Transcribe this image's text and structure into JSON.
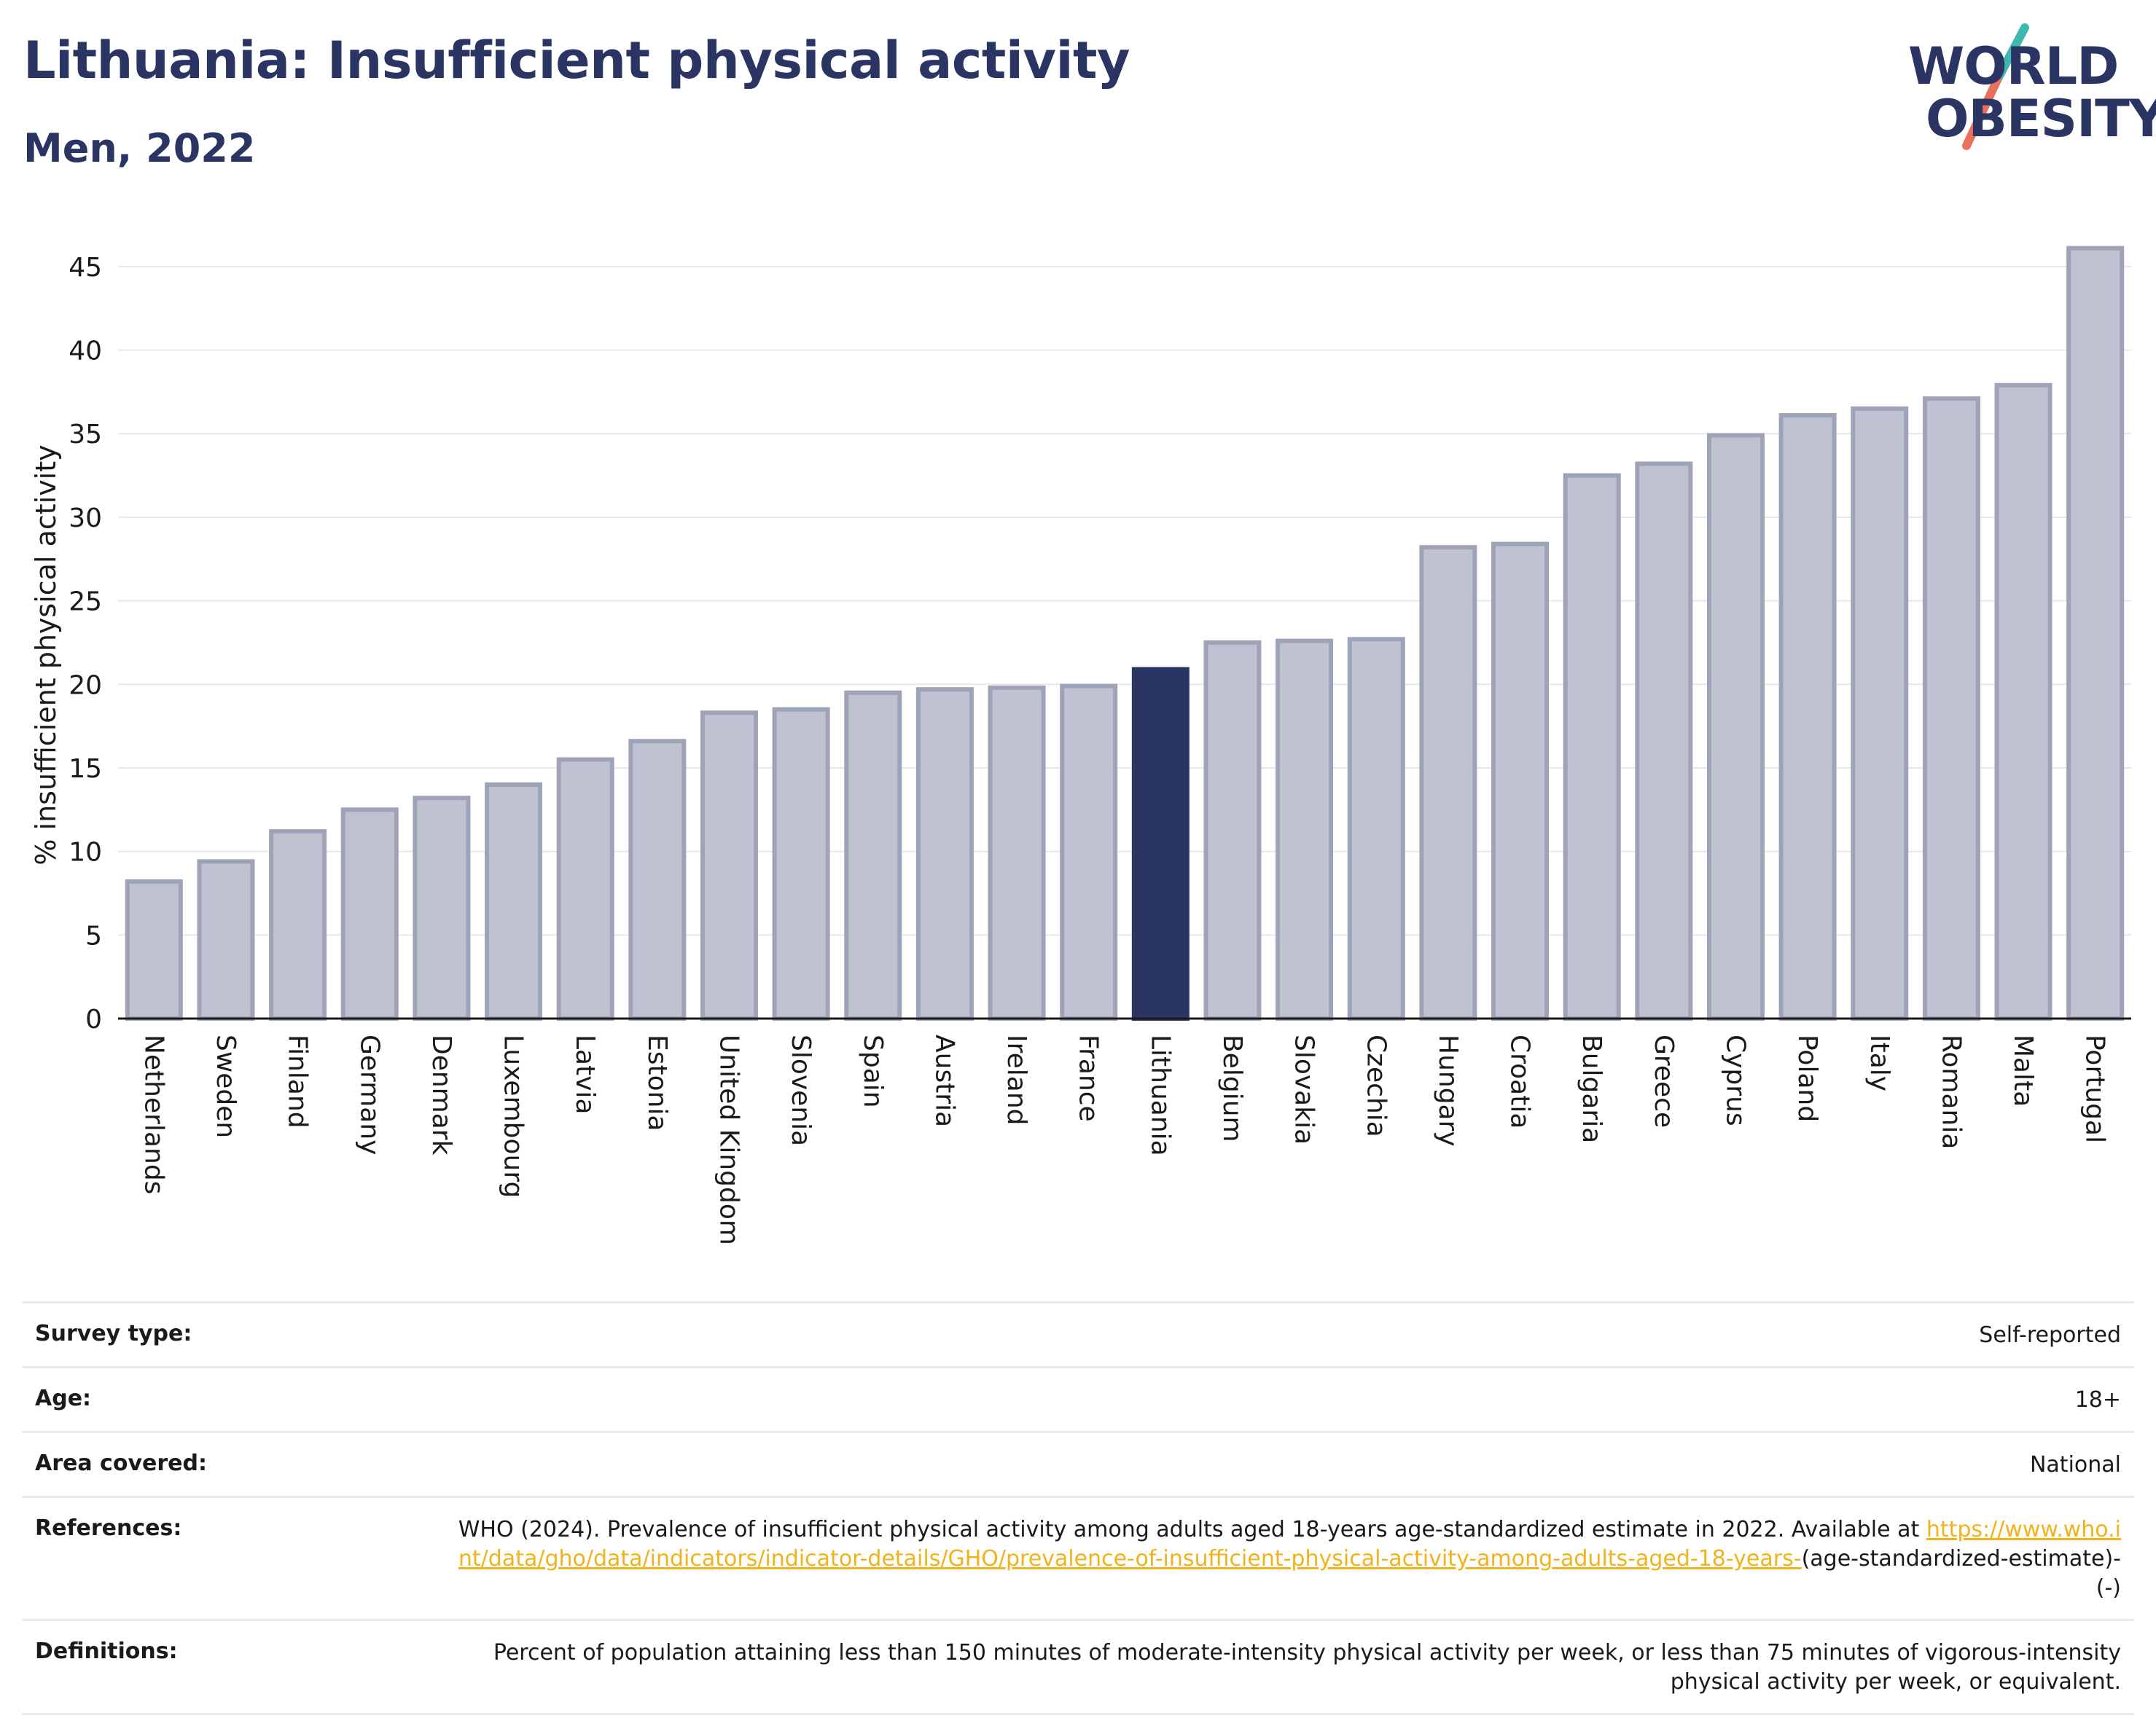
{
  "header": {
    "title": "Lithuania: Insufficient physical activity",
    "subtitle": "Men, 2022"
  },
  "logo": {
    "line1": "WORLD",
    "line2": "OBESITY",
    "accent_teal": "#3fb8b0",
    "accent_coral": "#e8705c"
  },
  "colors": {
    "bar_fill": "#bfc2d0",
    "bar_stroke": "#9ea3b8",
    "highlight_fill": "#2a3563",
    "axis_text": "#1a1a1a",
    "grid": "#e6e8ee",
    "title": "#2a3563"
  },
  "chart_data": {
    "type": "bar",
    "title": "Lithuania: Insufficient physical activity",
    "subtitle": "Men, 2022",
    "xlabel": "",
    "ylabel": "% insufficient physical activity",
    "ylim": [
      0,
      47
    ],
    "yticks": [
      0,
      5,
      10,
      15,
      20,
      25,
      30,
      35,
      40,
      45
    ],
    "grid": true,
    "highlight": "Lithuania",
    "categories": [
      "Netherlands",
      "Sweden",
      "Finland",
      "Germany",
      "Denmark",
      "Luxembourg",
      "Latvia",
      "Estonia",
      "United Kingdom",
      "Slovenia",
      "Spain",
      "Austria",
      "Ireland",
      "France",
      "Lithuania",
      "Belgium",
      "Slovakia",
      "Czechia",
      "Hungary",
      "Croatia",
      "Bulgaria",
      "Greece",
      "Cyprus",
      "Poland",
      "Italy",
      "Romania",
      "Malta",
      "Portugal"
    ],
    "values": [
      8.2,
      9.4,
      11.2,
      12.5,
      13.2,
      14.0,
      15.5,
      16.6,
      18.3,
      18.5,
      19.5,
      19.7,
      19.8,
      19.9,
      20.9,
      22.5,
      22.6,
      22.7,
      28.2,
      28.4,
      32.5,
      33.2,
      34.9,
      36.1,
      36.5,
      37.1,
      37.9,
      46.1
    ]
  },
  "info": {
    "survey_label": "Survey type:",
    "survey_value": "Self-reported",
    "age_label": "Age:",
    "age_value": "18+",
    "area_label": "Area covered:",
    "area_value": "National",
    "references_label": "References:",
    "references_text": "WHO (2024). Prevalence of insufficient physical activity among adults aged 18-years age-standardized estimate in 2022. Available at",
    "references_link": "https://www.who.int/data/gho/data/indicators/indicator-details/GHO/prevalence-of-insufficient-physical-activity-among-adults-aged-18-years-",
    "references_suffix": "(age-standardized-estimate)-(-)",
    "definitions_label": "Definitions:",
    "definitions_value": "Percent of population attaining less than 150 minutes of moderate-intensity physical activity per week, or less than 75 minutes of vigorous-intensity physical activity per week, or equivalent."
  }
}
